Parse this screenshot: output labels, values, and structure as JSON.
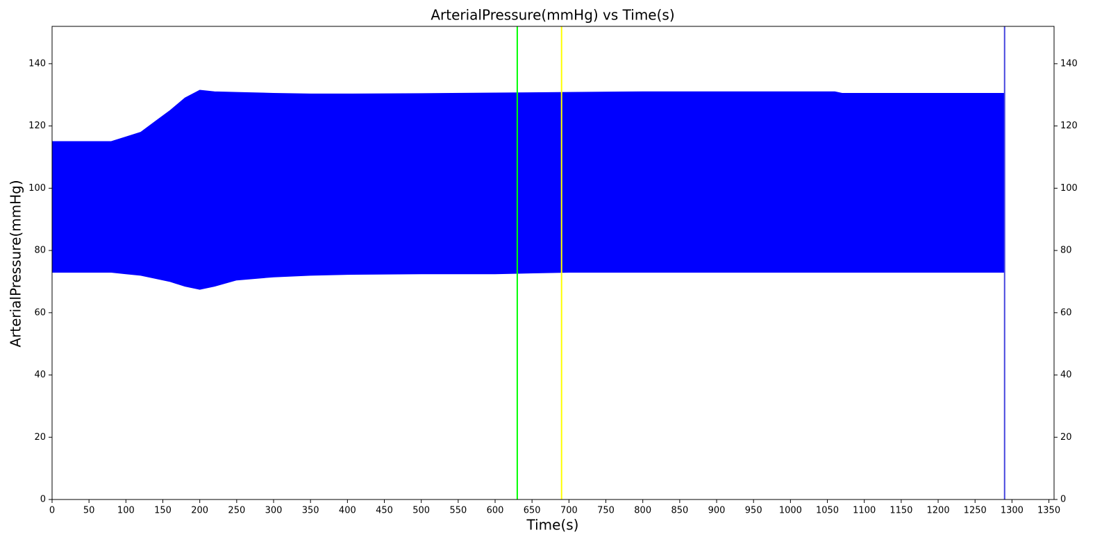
{
  "chart_data": {
    "type": "band",
    "title": "ArterialPressure(mmHg) vs Time(s)",
    "x_label": "Time(s)",
    "y_label": "ArterialPressure(mmHg)",
    "color": "#0000ff",
    "x": [
      0,
      40,
      60,
      80,
      100,
      120,
      140,
      160,
      180,
      200,
      220,
      250,
      300,
      350,
      400,
      500,
      600,
      700,
      800,
      900,
      1000,
      1060,
      1070,
      1100,
      1200,
      1290
    ],
    "upper": [
      115,
      115,
      115,
      115,
      116.5,
      118,
      121.5,
      125,
      129,
      131.5,
      131,
      130.8,
      130.5,
      130.3,
      130.3,
      130.4,
      130.6,
      130.8,
      131,
      131,
      131,
      131,
      130.5,
      130.5,
      130.5,
      130.5
    ],
    "lower": [
      73,
      73,
      73,
      73,
      72.5,
      72,
      71,
      70,
      68.5,
      67.5,
      68.5,
      70.5,
      71.5,
      72,
      72.3,
      72.5,
      72.5,
      73,
      73,
      73,
      73,
      73,
      73,
      73,
      73,
      73
    ],
    "vlines": [
      {
        "value": 630,
        "color": "#00ff00"
      },
      {
        "value": 690,
        "color": "#ffff00"
      },
      {
        "value": 1290,
        "color": "#4444dd"
      }
    ],
    "xlim": [
      0,
      1357
    ],
    "xticks": [
      0,
      50,
      100,
      150,
      200,
      250,
      300,
      350,
      400,
      450,
      500,
      550,
      600,
      650,
      700,
      750,
      800,
      850,
      900,
      950,
      1000,
      1050,
      1100,
      1150,
      1200,
      1250,
      1300,
      1350
    ],
    "ylim": [
      0,
      152
    ],
    "yticks": [
      0,
      20,
      40,
      60,
      80,
      100,
      120,
      140
    ],
    "right_axis": true
  }
}
